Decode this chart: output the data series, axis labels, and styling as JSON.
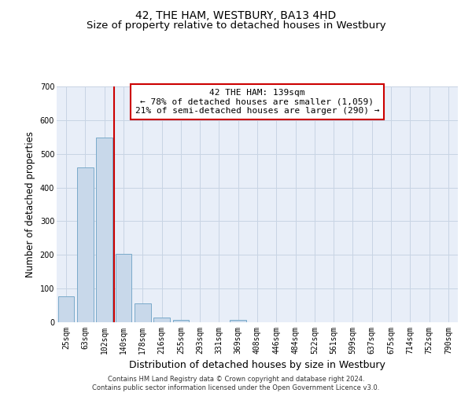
{
  "title": "42, THE HAM, WESTBURY, BA13 4HD",
  "subtitle": "Size of property relative to detached houses in Westbury",
  "xlabel": "Distribution of detached houses by size in Westbury",
  "ylabel": "Number of detached properties",
  "categories": [
    "25sqm",
    "63sqm",
    "102sqm",
    "140sqm",
    "178sqm",
    "216sqm",
    "255sqm",
    "293sqm",
    "331sqm",
    "369sqm",
    "408sqm",
    "446sqm",
    "484sqm",
    "522sqm",
    "561sqm",
    "599sqm",
    "637sqm",
    "675sqm",
    "714sqm",
    "752sqm",
    "790sqm"
  ],
  "values": [
    78,
    460,
    548,
    203,
    55,
    14,
    7,
    0,
    0,
    8,
    0,
    0,
    0,
    0,
    0,
    0,
    0,
    0,
    0,
    0,
    0
  ],
  "bar_color": "#c8d8ea",
  "bar_edge_color": "#7aaaca",
  "grid_color": "#c8d4e4",
  "background_color": "#e8eef8",
  "vline_color": "#cc0000",
  "annotation_text": "42 THE HAM: 139sqm\n← 78% of detached houses are smaller (1,059)\n21% of semi-detached houses are larger (290) →",
  "annotation_box_color": "#ffffff",
  "annotation_box_edge_color": "#cc0000",
  "ylim": [
    0,
    700
  ],
  "yticks": [
    0,
    100,
    200,
    300,
    400,
    500,
    600,
    700
  ],
  "footer_text": "Contains HM Land Registry data © Crown copyright and database right 2024.\nContains public sector information licensed under the Open Government Licence v3.0.",
  "title_fontsize": 10,
  "subtitle_fontsize": 9.5,
  "tick_fontsize": 7,
  "ylabel_fontsize": 8.5,
  "xlabel_fontsize": 9,
  "annotation_fontsize": 8,
  "footer_fontsize": 6
}
